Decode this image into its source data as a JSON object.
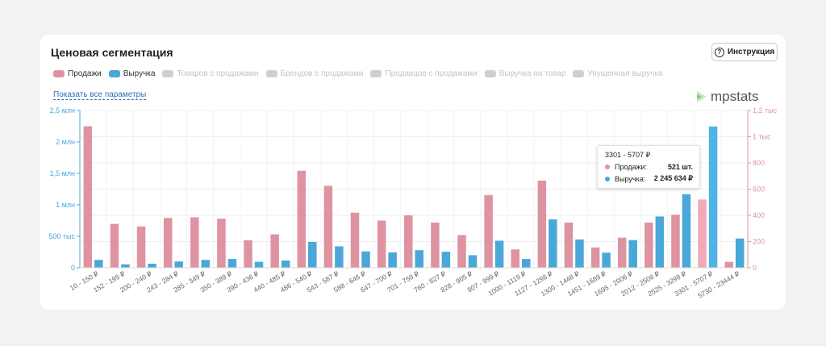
{
  "header": {
    "title": "Ценовая сегментация",
    "instruction_label": "Инструкция",
    "instruction_icon": "?",
    "show_all_link": "Показать все параметры",
    "logo_text": "mpstats"
  },
  "legend": [
    {
      "label": "Продажи",
      "color": "#de93a0",
      "active": true
    },
    {
      "label": "Выручка",
      "color": "#4aa8d8",
      "active": true
    },
    {
      "label": "Товаров с продажами",
      "color": "#cfcfcf",
      "active": false
    },
    {
      "label": "Брендов с продажами",
      "color": "#cfcfcf",
      "active": false
    },
    {
      "label": "Продавцов с продажами",
      "color": "#cfcfcf",
      "active": false
    },
    {
      "label": "Выручка на товар",
      "color": "#cfcfcf",
      "active": false
    },
    {
      "label": "Упущенная выручка",
      "color": "#cfcfcf",
      "active": false
    }
  ],
  "tooltip": {
    "title": "3301 - 5707 ₽",
    "sales_label": "Продажи:",
    "sales_value": "521 шт.",
    "revenue_label": "Выручка:",
    "revenue_value": "2 245 634 ₽"
  },
  "chart_data": {
    "type": "bar",
    "categories": [
      "10 - 150 ₽",
      "152 - 199 ₽",
      "200 - 240 ₽",
      "243 - 284 ₽",
      "285 - 349 ₽",
      "350 - 389 ₽",
      "390 - 436 ₽",
      "440 - 485 ₽",
      "486 - 540 ₽",
      "543 - 587 ₽",
      "588 - 646 ₽",
      "647 - 700 ₽",
      "701 - 759 ₽",
      "760 - 827 ₽",
      "828 - 905 ₽",
      "907 - 999 ₽",
      "1000 - 1119 ₽",
      "1127 - 1298 ₽",
      "1300 - 1448 ₽",
      "1451 - 1689 ₽",
      "1695 - 2006 ₽",
      "2012 - 2508 ₽",
      "2525 - 3299 ₽",
      "3301 - 5707 ₽",
      "5730 - 23444 ₽"
    ],
    "series": [
      {
        "name": "Продажи",
        "axis": "right",
        "color": "#de93a0",
        "values": [
          1080,
          335,
          315,
          380,
          385,
          375,
          210,
          255,
          740,
          625,
          420,
          360,
          400,
          345,
          250,
          555,
          140,
          665,
          345,
          155,
          230,
          345,
          405,
          521,
          45
        ]
      },
      {
        "name": "Выручка",
        "axis": "left",
        "color": "#4aa8d8",
        "values": [
          125000,
          55000,
          65000,
          100000,
          125000,
          140000,
          95000,
          115000,
          410000,
          340000,
          260000,
          245000,
          280000,
          255000,
          200000,
          430000,
          140000,
          770000,
          450000,
          240000,
          440000,
          815000,
          1170000,
          2245634,
          465000
        ]
      }
    ],
    "highlight_index": 23,
    "y_left": {
      "min": 0,
      "max": 2500000,
      "ticks": [
        0,
        500000,
        1000000,
        1500000,
        2000000,
        2500000
      ],
      "tick_labels": [
        "0",
        "500 тыс",
        "1 млн",
        "1,5 млн",
        "2 млн",
        "2,5 млн"
      ],
      "color": "#4aa8d8"
    },
    "y_right": {
      "min": 0,
      "max": 1200,
      "ticks": [
        0,
        200,
        400,
        600,
        800,
        1000,
        1200
      ],
      "tick_labels": [
        "0",
        "200",
        "400",
        "600",
        "800",
        "1 тыс",
        "1,2 тыс"
      ],
      "color": "#de93a0"
    }
  }
}
